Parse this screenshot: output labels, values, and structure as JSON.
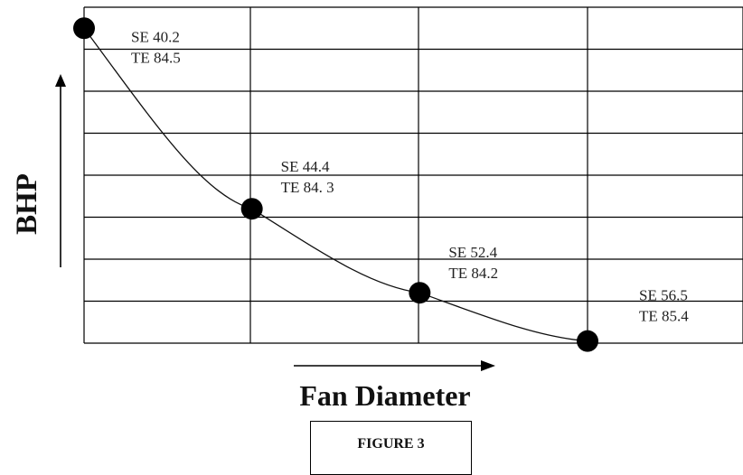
{
  "chart_data": {
    "type": "line",
    "xlabel": "Fan Diameter",
    "ylabel": "BHP",
    "xlim": [
      0,
      3
    ],
    "ylim": [
      0,
      8
    ],
    "grid": true,
    "series": [
      {
        "x": [
          0,
          1,
          2,
          3
        ],
        "y": [
          7.5,
          3.2,
          1.2,
          0.05
        ],
        "labels": [
          [
            "SE 40.2",
            "TE 84.5"
          ],
          [
            "SE 44.4",
            "TE 84. 3"
          ],
          [
            "SE 52.4",
            "TE 84.2"
          ],
          [
            "SE 56.5",
            "TE 85.4"
          ]
        ]
      }
    ]
  },
  "caption": "FIGURE 3"
}
